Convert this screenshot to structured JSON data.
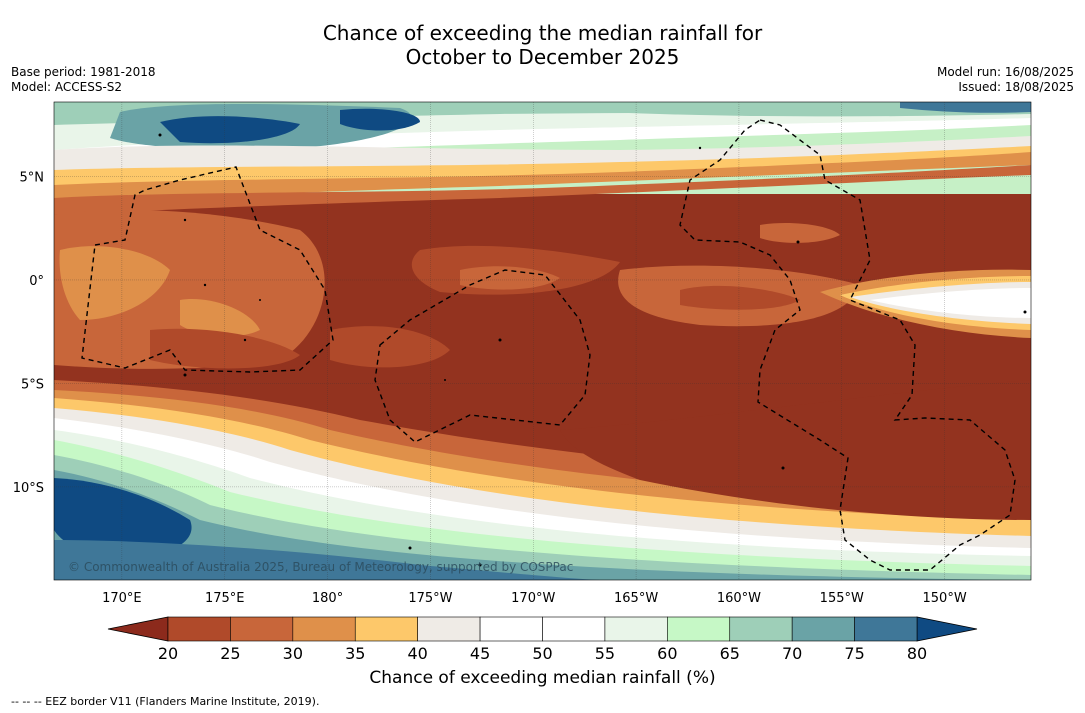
{
  "title_line1": "Chance of exceeding the median rainfall for",
  "title_line2": "October to December 2025",
  "meta_left": [
    "Base period: 1981-2018",
    "Model: ACCESS-S2"
  ],
  "meta_right": [
    "Model run: 16/08/2025",
    "Issued: 18/08/2025"
  ],
  "map": {
    "lon_ticks": [
      {
        "value": 170,
        "label": "170°E"
      },
      {
        "value": 175,
        "label": "175°E"
      },
      {
        "value": 180,
        "label": "180°"
      },
      {
        "value": 185,
        "label": "175°W"
      },
      {
        "value": 190,
        "label": "170°W"
      },
      {
        "value": 195,
        "label": "165°W"
      },
      {
        "value": 200,
        "label": "160°W"
      },
      {
        "value": 205,
        "label": "155°W"
      },
      {
        "value": 210,
        "label": "150°W"
      }
    ],
    "lat_ticks": [
      {
        "value": 5,
        "label": "5°N"
      },
      {
        "value": 0,
        "label": "0°"
      },
      {
        "value": -5,
        "label": "5°S"
      },
      {
        "value": -10,
        "label": "10°S"
      }
    ],
    "lon_range": [
      166.7,
      214.2
    ],
    "lat_range": [
      -14.5,
      8.6
    ],
    "copyright": "© Commonwealth of Australia 2025, Bureau of Meteorology, supported by COSPPac"
  },
  "colorbar": {
    "label": "Chance of exceeding median rainfall (%)",
    "ticks": [
      20,
      25,
      30,
      35,
      40,
      45,
      50,
      55,
      60,
      65,
      70,
      75,
      80
    ],
    "under_color": "#8c2a1c",
    "over_color": "#0f4a82",
    "colors": [
      "#b04a2a",
      "#c8663a",
      "#df904a",
      "#fdc86a",
      "#efebe6",
      "#ffffff",
      "#ffffff",
      "#e9f5e9",
      "#c6f8c6",
      "#9ecfb8",
      "#6aa3a6",
      "#3f7798"
    ]
  },
  "footnote": "-- -- -- EEZ border V11 (Flanders Marine Institute, 2019)."
}
